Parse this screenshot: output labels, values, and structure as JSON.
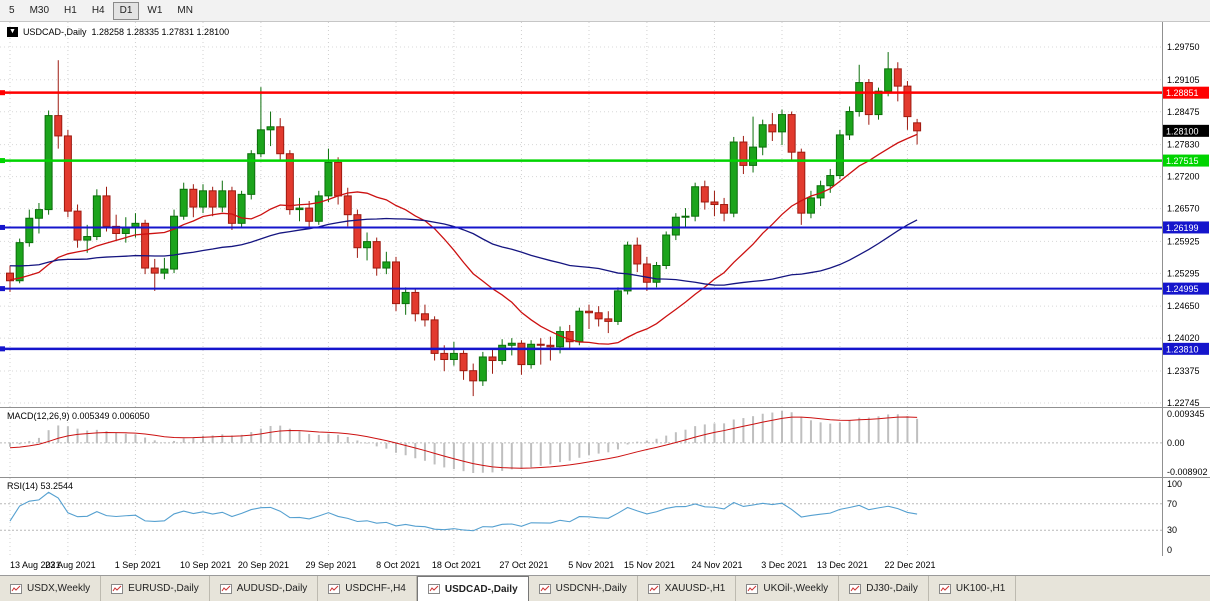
{
  "toolbar": {
    "timeframes": [
      {
        "label": "5",
        "selected": false
      },
      {
        "label": "M30",
        "selected": false
      },
      {
        "label": "H1",
        "selected": false
      },
      {
        "label": "H4",
        "selected": false
      },
      {
        "label": "D1",
        "selected": true
      },
      {
        "label": "W1",
        "selected": false
      },
      {
        "label": "MN",
        "selected": false
      }
    ]
  },
  "chart": {
    "symbol_label": "USDCAD-,Daily",
    "ohlc_label": "1.28258 1.28335 1.27831 1.28100",
    "price_axis": [
      "1.29750",
      "1.29105",
      "1.28475",
      "1.27830",
      "1.27200",
      "1.26570",
      "1.25925",
      "1.25295",
      "1.24650",
      "1.24020",
      "1.23375",
      "1.22745"
    ],
    "hlines": [
      {
        "price": 1.28851,
        "label": "1.28851",
        "color": "#ff0000",
        "width": 2.5
      },
      {
        "price": 1.27515,
        "label": "1.27515",
        "color": "#00d400",
        "width": 2.5
      },
      {
        "price": 1.26199,
        "label": "1.26199",
        "color": "#1515cc",
        "width": 2
      },
      {
        "price": 1.24995,
        "label": "1.24995",
        "color": "#1515cc",
        "width": 2
      },
      {
        "price": 1.2381,
        "label": "1.23810",
        "color": "#1515cc",
        "width": 2.5
      }
    ],
    "current_price": {
      "price": 1.281,
      "label": "1.28100",
      "color": "#000000"
    }
  },
  "chart_data": {
    "type": "candlestick",
    "title": "USDCAD-,Daily",
    "price_axis_range": [
      1.22745,
      1.2975
    ],
    "grid": true,
    "candle_up_color": "#1ca41c",
    "candle_down_color": "#e23a2e",
    "candles": [
      [
        1.253,
        1.2545,
        1.2493,
        1.2515
      ],
      [
        1.2515,
        1.2598,
        1.251,
        1.259
      ],
      [
        1.259,
        1.2655,
        1.2582,
        1.2638
      ],
      [
        1.2638,
        1.2668,
        1.2608,
        1.2655
      ],
      [
        1.2655,
        1.285,
        1.2645,
        1.284
      ],
      [
        1.284,
        1.2949,
        1.2775,
        1.28
      ],
      [
        1.28,
        1.2812,
        1.264,
        1.2652
      ],
      [
        1.2652,
        1.2665,
        1.258,
        1.2595
      ],
      [
        1.2595,
        1.2625,
        1.257,
        1.2602
      ],
      [
        1.2602,
        1.2695,
        1.2595,
        1.2682
      ],
      [
        1.2682,
        1.27,
        1.2612,
        1.2622
      ],
      [
        1.2622,
        1.2645,
        1.2595,
        1.2608
      ],
      [
        1.2608,
        1.264,
        1.259,
        1.262
      ],
      [
        1.262,
        1.2648,
        1.26,
        1.2628
      ],
      [
        1.2628,
        1.2635,
        1.2528,
        1.254
      ],
      [
        1.254,
        1.2558,
        1.2495,
        1.253
      ],
      [
        1.253,
        1.256,
        1.2518,
        1.2538
      ],
      [
        1.2538,
        1.2655,
        1.253,
        1.2642
      ],
      [
        1.2642,
        1.2708,
        1.2635,
        1.2695
      ],
      [
        1.2695,
        1.2705,
        1.264,
        1.266
      ],
      [
        1.266,
        1.2705,
        1.2648,
        1.2692
      ],
      [
        1.2692,
        1.27,
        1.2642,
        1.266
      ],
      [
        1.266,
        1.2712,
        1.265,
        1.2692
      ],
      [
        1.2692,
        1.27,
        1.2615,
        1.2628
      ],
      [
        1.2628,
        1.2692,
        1.2618,
        1.2685
      ],
      [
        1.2685,
        1.2772,
        1.2675,
        1.2765
      ],
      [
        1.2765,
        1.2896,
        1.2758,
        1.2812
      ],
      [
        1.2812,
        1.2848,
        1.278,
        1.2818
      ],
      [
        1.2818,
        1.2835,
        1.2752,
        1.2765
      ],
      [
        1.2765,
        1.2772,
        1.2645,
        1.2655
      ],
      [
        1.2655,
        1.2678,
        1.2632,
        1.2658
      ],
      [
        1.2658,
        1.2672,
        1.2618,
        1.2632
      ],
      [
        1.2632,
        1.2692,
        1.2625,
        1.2682
      ],
      [
        1.2682,
        1.2775,
        1.267,
        1.2748
      ],
      [
        1.2748,
        1.2758,
        1.2665,
        1.2682
      ],
      [
        1.2682,
        1.2698,
        1.2622,
        1.2645
      ],
      [
        1.2645,
        1.2655,
        1.256,
        1.258
      ],
      [
        1.258,
        1.261,
        1.2555,
        1.2592
      ],
      [
        1.2592,
        1.26,
        1.2525,
        1.254
      ],
      [
        1.254,
        1.2572,
        1.2528,
        1.2552
      ],
      [
        1.2552,
        1.2562,
        1.2455,
        1.247
      ],
      [
        1.247,
        1.2502,
        1.2448,
        1.2492
      ],
      [
        1.2492,
        1.25,
        1.2435,
        1.245
      ],
      [
        1.245,
        1.2468,
        1.2425,
        1.2438
      ],
      [
        1.2438,
        1.2445,
        1.2358,
        1.2372
      ],
      [
        1.2372,
        1.2388,
        1.2337,
        1.236
      ],
      [
        1.236,
        1.2395,
        1.2348,
        1.2372
      ],
      [
        1.2372,
        1.2378,
        1.232,
        1.2338
      ],
      [
        1.2338,
        1.2352,
        1.2288,
        1.2318
      ],
      [
        1.2318,
        1.2375,
        1.2308,
        1.2365
      ],
      [
        1.2365,
        1.238,
        1.2332,
        1.2358
      ],
      [
        1.2358,
        1.24,
        1.235,
        1.2388
      ],
      [
        1.2388,
        1.2402,
        1.2368,
        1.2392
      ],
      [
        1.2392,
        1.2398,
        1.233,
        1.235
      ],
      [
        1.235,
        1.2398,
        1.2342,
        1.239
      ],
      [
        1.239,
        1.2402,
        1.235,
        1.2388
      ],
      [
        1.2388,
        1.2405,
        1.2358,
        1.2385
      ],
      [
        1.2385,
        1.2425,
        1.2372,
        1.2415
      ],
      [
        1.2415,
        1.2428,
        1.238,
        1.2395
      ],
      [
        1.2395,
        1.2462,
        1.2388,
        1.2455
      ],
      [
        1.2455,
        1.2468,
        1.242,
        1.2452
      ],
      [
        1.2452,
        1.2465,
        1.2425,
        1.244
      ],
      [
        1.244,
        1.2455,
        1.2412,
        1.2435
      ],
      [
        1.2435,
        1.2502,
        1.2428,
        1.2495
      ],
      [
        1.2495,
        1.2592,
        1.2488,
        1.2585
      ],
      [
        1.2585,
        1.26,
        1.2532,
        1.2548
      ],
      [
        1.2548,
        1.2562,
        1.2495,
        1.2512
      ],
      [
        1.2512,
        1.2552,
        1.2502,
        1.2545
      ],
      [
        1.2545,
        1.2612,
        1.2538,
        1.2605
      ],
      [
        1.2605,
        1.2648,
        1.2595,
        1.264
      ],
      [
        1.264,
        1.2658,
        1.2618,
        1.2642
      ],
      [
        1.2642,
        1.2708,
        1.2632,
        1.27
      ],
      [
        1.27,
        1.2712,
        1.2655,
        1.267
      ],
      [
        1.267,
        1.2692,
        1.2642,
        1.2665
      ],
      [
        1.2665,
        1.2678,
        1.2632,
        1.2648
      ],
      [
        1.2648,
        1.2798,
        1.264,
        1.2788
      ],
      [
        1.2788,
        1.28,
        1.2725,
        1.2742
      ],
      [
        1.2742,
        1.2838,
        1.2728,
        1.2778
      ],
      [
        1.2778,
        1.2832,
        1.2762,
        1.2822
      ],
      [
        1.2822,
        1.2845,
        1.279,
        1.2808
      ],
      [
        1.2808,
        1.2852,
        1.2782,
        1.2842
      ],
      [
        1.2842,
        1.2848,
        1.2752,
        1.2768
      ],
      [
        1.2768,
        1.2775,
        1.2625,
        1.2648
      ],
      [
        1.2648,
        1.2692,
        1.2638,
        1.2678
      ],
      [
        1.2678,
        1.2712,
        1.2662,
        1.2702
      ],
      [
        1.2702,
        1.2735,
        1.2688,
        1.2722
      ],
      [
        1.2722,
        1.2812,
        1.2715,
        1.2802
      ],
      [
        1.2802,
        1.2858,
        1.2792,
        1.2848
      ],
      [
        1.2848,
        1.294,
        1.2838,
        1.2905
      ],
      [
        1.2905,
        1.2912,
        1.2822,
        1.2842
      ],
      [
        1.2842,
        1.2895,
        1.2832,
        1.2888
      ],
      [
        1.2888,
        1.2965,
        1.2878,
        1.2932
      ],
      [
        1.2932,
        1.2945,
        1.2868,
        1.2898
      ],
      [
        1.2898,
        1.2908,
        1.2812,
        1.2838
      ],
      [
        1.28258,
        1.28335,
        1.27831,
        1.281
      ]
    ],
    "indicator_warmup_closes": [
      1.262,
      1.261,
      1.26,
      1.259,
      1.26,
      1.261,
      1.26,
      1.259,
      1.258,
      1.257,
      1.256,
      1.257,
      1.258,
      1.257,
      1.256,
      1.255,
      1.254,
      1.255,
      1.256,
      1.255,
      1.254,
      1.253,
      1.254,
      1.255,
      1.254,
      1.253,
      1.252,
      1.253,
      1.254,
      1.253,
      1.252,
      1.251,
      1.252,
      1.253,
      1.252,
      1.251,
      1.25,
      1.251,
      1.252,
      1.251,
      1.25,
      1.2505,
      1.251,
      1.2515,
      1.252
    ],
    "ma_lines": [
      {
        "name": "ma-fast",
        "period": 20,
        "color": "#cc1111"
      },
      {
        "name": "ma-slow",
        "period": 45,
        "color": "#151580"
      }
    ],
    "macd": {
      "fast": 12,
      "slow": 26,
      "signal": 9,
      "histogram_color": "#bfbfbf",
      "signal_color": "#cc1111"
    },
    "rsi": {
      "period": 14,
      "color": "#55a0d0",
      "levels": [
        70,
        30
      ]
    },
    "x_ticks": [
      {
        "label": "13 Aug 2021",
        "index": 0
      },
      {
        "label": "23 Aug 2021",
        "index": 6
      },
      {
        "label": "1 Sep 2021",
        "index": 13
      },
      {
        "label": "10 Sep 2021",
        "index": 20
      },
      {
        "label": "20 Sep 2021",
        "index": 26
      },
      {
        "label": "29 Sep 2021",
        "index": 33
      },
      {
        "label": "8 Oct 2021",
        "index": 40
      },
      {
        "label": "18 Oct 2021",
        "index": 46
      },
      {
        "label": "27 Oct 2021",
        "index": 53
      },
      {
        "label": "5 Nov 2021",
        "index": 60
      },
      {
        "label": "15 Nov 2021",
        "index": 66
      },
      {
        "label": "24 Nov 2021",
        "index": 73
      },
      {
        "label": "3 Dec 2021",
        "index": 80
      },
      {
        "label": "13 Dec 2021",
        "index": 86
      },
      {
        "label": "22 Dec 2021",
        "index": 93
      }
    ]
  },
  "macd_panel": {
    "title": "MACD(12,26,9) 0.005349 0.006050",
    "axis_labels": [
      "0.009345",
      "0.00",
      "-0.008902"
    ]
  },
  "rsi_panel": {
    "title": "RSI(14) 53.2544",
    "axis_labels": [
      "100",
      "70",
      "30",
      "0"
    ]
  },
  "tabs": [
    {
      "label": "USDX,Weekly",
      "active": false
    },
    {
      "label": "EURUSD-,Daily",
      "active": false
    },
    {
      "label": "AUDUSD-,Daily",
      "active": false
    },
    {
      "label": "USDCHF-,H4",
      "active": false
    },
    {
      "label": "USDCAD-,Daily",
      "active": true
    },
    {
      "label": "USDCNH-,Daily",
      "active": false
    },
    {
      "label": "XAUUSD-,H1",
      "active": false
    },
    {
      "label": "UKOil-,Weekly",
      "active": false
    },
    {
      "label": "DJ30-,Daily",
      "active": false
    },
    {
      "label": "UK100-,H1",
      "active": false
    }
  ]
}
